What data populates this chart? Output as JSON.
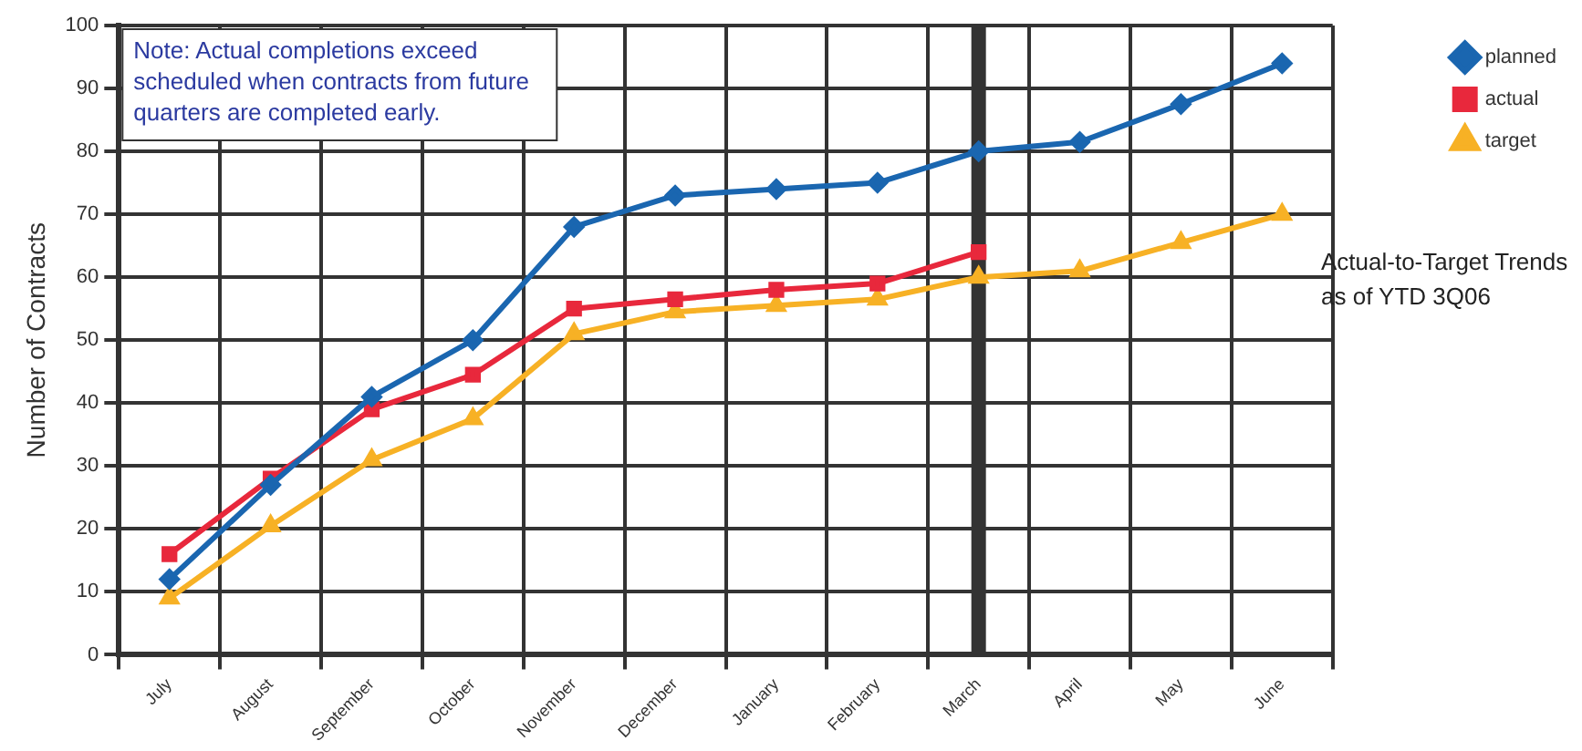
{
  "chart_data": {
    "type": "line",
    "title": "Actual-to-Target Trends as of YTD 3Q06",
    "ylabel": "Number of Contracts",
    "categories": [
      "July",
      "August",
      "September",
      "October",
      "November",
      "December",
      "January",
      "February",
      "March",
      "April",
      "May",
      "June"
    ],
    "series": [
      {
        "name": "planned",
        "color": "#1a66b0",
        "marker": "diamond",
        "values": [
          12,
          27,
          41,
          50,
          68,
          73,
          74,
          75,
          80,
          81.5,
          87.5,
          94
        ]
      },
      {
        "name": "actual",
        "color": "#e8283c",
        "marker": "square",
        "values": [
          16,
          28,
          39,
          44.5,
          55,
          56.5,
          58,
          59,
          64,
          null,
          null,
          null
        ]
      },
      {
        "name": "target",
        "color": "#f7b125",
        "marker": "triangle",
        "values": [
          9,
          20.5,
          31,
          37.5,
          51,
          54.5,
          55.5,
          56.5,
          60,
          61,
          65.5,
          70
        ]
      }
    ],
    "ylim": [
      0,
      100
    ],
    "yticks": [
      0,
      10,
      20,
      30,
      40,
      50,
      60,
      70,
      80,
      90,
      100
    ],
    "grid": true,
    "legend": "top right",
    "ref_lines": [
      {
        "axis": "x",
        "value": "March",
        "color": "#333333"
      }
    ],
    "annotations": [
      "Note: Actual completions exceed scheduled when contracts from future quarters are completed early."
    ]
  }
}
